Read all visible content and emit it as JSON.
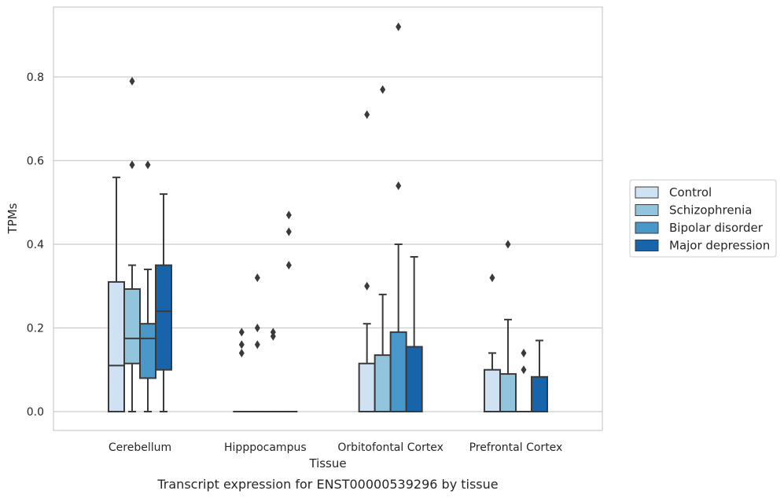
{
  "chart_data": {
    "type": "box",
    "title": "",
    "caption": "Transcript expression for ENST00000539296 by tissue",
    "xlabel": "Tissue",
    "ylabel": "TPMs",
    "ylim": [
      -0.045,
      0.97
    ],
    "yticks": [
      "0.0",
      "0.2",
      "0.4",
      "0.6",
      "0.8"
    ],
    "grid": "horizontal",
    "legend_position": "right",
    "categories": [
      "Cerebellum",
      "Hipppocampus",
      "Orbitofontal Cortex",
      "Prefrontal Cortex"
    ],
    "series": [
      {
        "name": "Control",
        "color": "#cfe1f2",
        "boxes": [
          {
            "q1": 0.0,
            "median": 0.11,
            "q3": 0.31,
            "whisker_low": 0.0,
            "whisker_high": 0.56,
            "outliers": []
          },
          {
            "q1": 0.0,
            "median": 0.0,
            "q3": 0.0,
            "whisker_low": 0.0,
            "whisker_high": 0.0,
            "outliers": [
              0.14,
              0.16,
              0.19
            ]
          },
          {
            "q1": 0.0,
            "median": 0.0,
            "q3": 0.115,
            "whisker_low": 0.0,
            "whisker_high": 0.21,
            "outliers": [
              0.3,
              0.71
            ]
          },
          {
            "q1": 0.0,
            "median": 0.0,
            "q3": 0.1,
            "whisker_low": 0.0,
            "whisker_high": 0.14,
            "outliers": [
              0.32
            ]
          }
        ]
      },
      {
        "name": "Schizophrenia",
        "color": "#93c4de",
        "boxes": [
          {
            "q1": 0.115,
            "median": 0.175,
            "q3": 0.293,
            "whisker_low": 0.0,
            "whisker_high": 0.35,
            "outliers": [
              0.59,
              0.79
            ]
          },
          {
            "q1": 0.0,
            "median": 0.0,
            "q3": 0.0,
            "whisker_low": 0.0,
            "whisker_high": 0.0,
            "outliers": [
              0.16,
              0.2,
              0.32
            ]
          },
          {
            "q1": 0.0,
            "median": 0.0,
            "q3": 0.135,
            "whisker_low": 0.0,
            "whisker_high": 0.28,
            "outliers": [
              0.77
            ]
          },
          {
            "q1": 0.0,
            "median": 0.0,
            "q3": 0.09,
            "whisker_low": 0.0,
            "whisker_high": 0.22,
            "outliers": [
              0.4
            ]
          }
        ]
      },
      {
        "name": "Bipolar disorder",
        "color": "#4a98c9",
        "boxes": [
          {
            "q1": 0.08,
            "median": 0.175,
            "q3": 0.21,
            "whisker_low": 0.0,
            "whisker_high": 0.34,
            "outliers": [
              0.59
            ]
          },
          {
            "q1": 0.0,
            "median": 0.0,
            "q3": 0.0,
            "whisker_low": 0.0,
            "whisker_high": 0.0,
            "outliers": [
              0.18,
              0.19
            ]
          },
          {
            "q1": 0.0,
            "median": 0.0,
            "q3": 0.19,
            "whisker_low": 0.0,
            "whisker_high": 0.4,
            "outliers": [
              0.54,
              0.92
            ]
          },
          {
            "q1": 0.0,
            "median": 0.0,
            "q3": 0.0,
            "whisker_low": 0.0,
            "whisker_high": 0.0,
            "outliers": [
              0.1,
              0.14
            ]
          }
        ]
      },
      {
        "name": "Major depression",
        "color": "#1764ab",
        "boxes": [
          {
            "q1": 0.1,
            "median": 0.24,
            "q3": 0.35,
            "whisker_low": 0.0,
            "whisker_high": 0.52,
            "outliers": []
          },
          {
            "q1": 0.0,
            "median": 0.0,
            "q3": 0.0,
            "whisker_low": 0.0,
            "whisker_high": 0.0,
            "outliers": [
              0.35,
              0.43,
              0.47
            ]
          },
          {
            "q1": 0.0,
            "median": 0.0,
            "q3": 0.155,
            "whisker_low": 0.0,
            "whisker_high": 0.37,
            "outliers": []
          },
          {
            "q1": 0.0,
            "median": 0.0,
            "q3": 0.083,
            "whisker_low": 0.0,
            "whisker_high": 0.17,
            "outliers": []
          }
        ]
      }
    ]
  }
}
